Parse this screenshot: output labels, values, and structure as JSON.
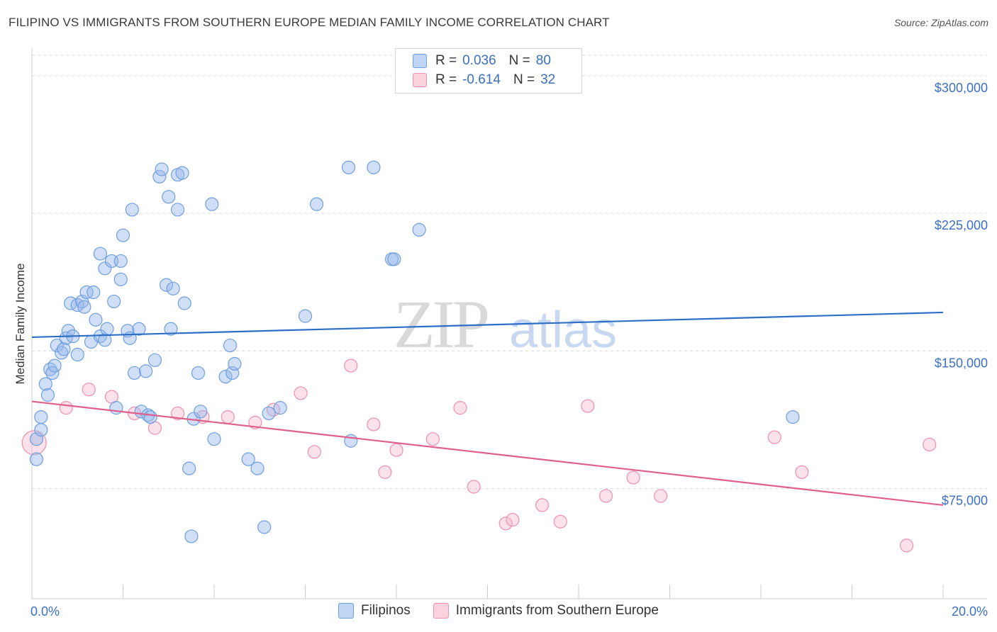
{
  "title": "FILIPINO VS IMMIGRANTS FROM SOUTHERN EUROPE MEDIAN FAMILY INCOME CORRELATION CHART",
  "source": "Source: ZipAtlas.com",
  "watermark": {
    "zip": "ZIP",
    "atlas": "atlas"
  },
  "colors": {
    "blue": "#6e9fe0",
    "blue_fill": "rgba(150,185,235,0.45)",
    "blue_line": "#2d6fc7",
    "pink": "#ee90ae",
    "pink_fill": "rgba(245,180,200,0.40)",
    "pink_line": "#e0608c",
    "grid": "#d9d9d9",
    "label": "#3b6fc0"
  },
  "legend_top": {
    "rows": [
      {
        "r_label": "R =",
        "r_value": "0.036",
        "n_label": "N =",
        "n_value": "80"
      },
      {
        "r_label": "R =",
        "r_value": "-0.614",
        "n_label": "N =",
        "n_value": "32"
      }
    ]
  },
  "legend_bottom": [
    "Filipinos",
    "Immigrants from Southern Europe"
  ],
  "chart_data": {
    "type": "scatter",
    "title": "FILIPINO VS IMMIGRANTS FROM SOUTHERN EUROPE MEDIAN FAMILY INCOME CORRELATION CHART",
    "xlabel": "",
    "ylabel": "Median Family Income",
    "xlim": [
      0,
      20
    ],
    "ylim": [
      15000,
      315000
    ],
    "x_tick_labels": [
      "0.0%",
      "20.0%"
    ],
    "y_ticks": [
      75000,
      150000,
      225000,
      300000
    ],
    "y_tick_labels": [
      "$75,000",
      "$150,000",
      "$225,000",
      "$300,000"
    ],
    "grid": true,
    "series": [
      {
        "name": "Filipinos",
        "r": 0.036,
        "n": 80,
        "trend": {
          "x": [
            0,
            20
          ],
          "y": [
            157500,
            171000
          ]
        },
        "points": [
          [
            0.1,
            91000
          ],
          [
            0.1,
            102000
          ],
          [
            0.2,
            107000
          ],
          [
            0.2,
            114000
          ],
          [
            0.3,
            132000
          ],
          [
            0.35,
            126000
          ],
          [
            0.4,
            140000
          ],
          [
            0.45,
            138000
          ],
          [
            0.5,
            142000
          ],
          [
            0.55,
            153000
          ],
          [
            0.65,
            149000
          ],
          [
            0.7,
            151000
          ],
          [
            0.75,
            157000
          ],
          [
            0.8,
            161000
          ],
          [
            0.9,
            158000
          ],
          [
            0.85,
            176000
          ],
          [
            1.0,
            148000
          ],
          [
            1.0,
            175000
          ],
          [
            1.1,
            177000
          ],
          [
            1.15,
            174000
          ],
          [
            1.2,
            182000
          ],
          [
            1.3,
            155000
          ],
          [
            1.35,
            182000
          ],
          [
            1.4,
            167000
          ],
          [
            1.5,
            158000
          ],
          [
            1.6,
            156000
          ],
          [
            1.65,
            162000
          ],
          [
            1.5,
            203000
          ],
          [
            1.6,
            195000
          ],
          [
            1.75,
            199000
          ],
          [
            1.8,
            177000
          ],
          [
            1.85,
            119000
          ],
          [
            1.95,
            199000
          ],
          [
            2.0,
            213000
          ],
          [
            1.95,
            189000
          ],
          [
            2.1,
            161000
          ],
          [
            2.15,
            157000
          ],
          [
            2.2,
            227000
          ],
          [
            2.25,
            138000
          ],
          [
            2.35,
            162000
          ],
          [
            2.4,
            117000
          ],
          [
            2.5,
            139000
          ],
          [
            2.55,
            115000
          ],
          [
            2.6,
            114000
          ],
          [
            2.7,
            145000
          ],
          [
            2.8,
            245000
          ],
          [
            2.85,
            249000
          ],
          [
            2.95,
            186000
          ],
          [
            3.0,
            234000
          ],
          [
            3.05,
            162000
          ],
          [
            3.1,
            184000
          ],
          [
            3.2,
            227000
          ],
          [
            3.2,
            246000
          ],
          [
            3.3,
            247000
          ],
          [
            3.35,
            176000
          ],
          [
            3.45,
            86000
          ],
          [
            3.5,
            49000
          ],
          [
            3.55,
            113000
          ],
          [
            3.65,
            138000
          ],
          [
            3.7,
            117000
          ],
          [
            3.95,
            230000
          ],
          [
            4.0,
            102000
          ],
          [
            4.25,
            136000
          ],
          [
            4.35,
            153000
          ],
          [
            4.4,
            138000
          ],
          [
            4.45,
            143000
          ],
          [
            4.75,
            91000
          ],
          [
            4.95,
            86000
          ],
          [
            5.1,
            54000
          ],
          [
            5.2,
            116000
          ],
          [
            5.45,
            119000
          ],
          [
            6.0,
            169000
          ],
          [
            6.25,
            230000
          ],
          [
            6.95,
            250000
          ],
          [
            7.0,
            101000
          ],
          [
            7.5,
            250000
          ],
          [
            7.9,
            200000
          ],
          [
            7.95,
            200000
          ],
          [
            8.5,
            216000
          ],
          [
            16.7,
            114000
          ]
        ]
      },
      {
        "name": "Immigrants from Southern Europe",
        "r": -0.614,
        "n": 32,
        "trend": {
          "x": [
            0,
            20
          ],
          "y": [
            122500,
            66000
          ]
        },
        "points": [
          [
            0.05,
            100000
          ],
          [
            0.75,
            119000
          ],
          [
            1.25,
            129000
          ],
          [
            1.75,
            125000
          ],
          [
            2.25,
            116000
          ],
          [
            2.7,
            108000
          ],
          [
            3.2,
            116000
          ],
          [
            3.75,
            114000
          ],
          [
            4.3,
            114000
          ],
          [
            4.9,
            111000
          ],
          [
            5.3,
            118000
          ],
          [
            5.9,
            127000
          ],
          [
            6.2,
            95000
          ],
          [
            7.0,
            142000
          ],
          [
            7.5,
            110000
          ],
          [
            7.75,
            84000
          ],
          [
            8.0,
            96000
          ],
          [
            8.8,
            102000
          ],
          [
            9.4,
            119000
          ],
          [
            9.7,
            76000
          ],
          [
            10.4,
            56000
          ],
          [
            10.55,
            58000
          ],
          [
            11.2,
            66000
          ],
          [
            11.6,
            57000
          ],
          [
            12.2,
            120000
          ],
          [
            12.6,
            71000
          ],
          [
            13.2,
            81000
          ],
          [
            13.8,
            71000
          ],
          [
            16.3,
            103000
          ],
          [
            16.9,
            84000
          ],
          [
            19.2,
            44000
          ],
          [
            19.7,
            99000
          ]
        ]
      }
    ]
  }
}
